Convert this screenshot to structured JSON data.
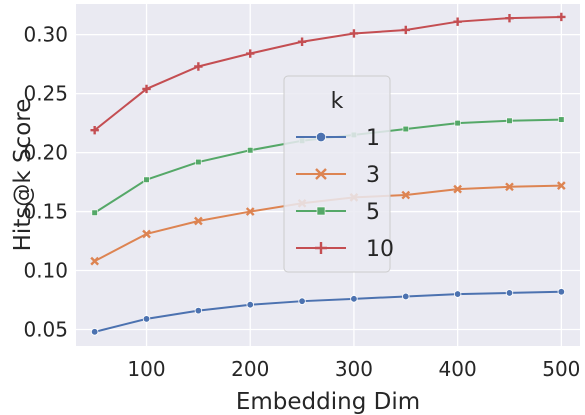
{
  "chart_data": {
    "type": "line",
    "xlabel": "Embedding Dim",
    "ylabel": "Hits@k Score",
    "xlim": [
      32,
      518
    ],
    "ylim": [
      0.036,
      0.326
    ],
    "xticks": [
      100,
      200,
      300,
      400,
      500
    ],
    "yticks": [
      0.05,
      0.1,
      0.15,
      0.2,
      0.25,
      0.3
    ],
    "xtick_labels": [
      "100",
      "200",
      "300",
      "400",
      "500"
    ],
    "ytick_labels": [
      "0.05",
      "0.10",
      "0.15",
      "0.20",
      "0.25",
      "0.30"
    ],
    "grid": true,
    "background": "#eaeaf2",
    "legend": {
      "title": "k",
      "placement": "center"
    },
    "x": [
      50,
      100,
      150,
      200,
      250,
      300,
      350,
      400,
      450,
      500
    ],
    "series": [
      {
        "name": "1",
        "color": "#4c72b0",
        "marker": "circle",
        "values": [
          0.048,
          0.059,
          0.066,
          0.071,
          0.074,
          0.076,
          0.078,
          0.08,
          0.081,
          0.082
        ]
      },
      {
        "name": "3",
        "color": "#dd8452",
        "marker": "x",
        "values": [
          0.108,
          0.131,
          0.142,
          0.15,
          0.157,
          0.162,
          0.164,
          0.169,
          0.171,
          0.172
        ]
      },
      {
        "name": "5",
        "color": "#55a868",
        "marker": "square",
        "values": [
          0.149,
          0.177,
          0.192,
          0.202,
          0.21,
          0.215,
          0.22,
          0.225,
          0.227,
          0.228
        ]
      },
      {
        "name": "10",
        "color": "#c44e52",
        "marker": "plus",
        "values": [
          0.219,
          0.254,
          0.273,
          0.284,
          0.294,
          0.301,
          0.304,
          0.311,
          0.314,
          0.315
        ]
      }
    ]
  }
}
